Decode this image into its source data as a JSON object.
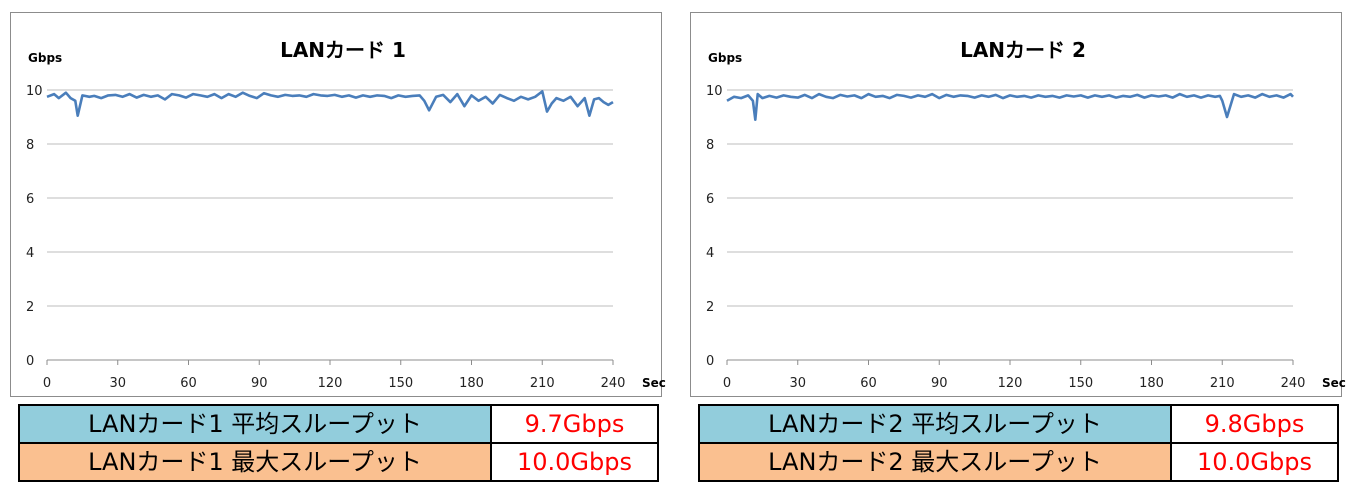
{
  "colors": {
    "series": "#4a7ebb",
    "avg_fill": "#92cddc",
    "max_fill": "#fac090",
    "value_text": "#ff0000"
  },
  "chart_data": [
    {
      "type": "line",
      "title": "LANカード 1",
      "ylabel": "Gbps",
      "xlabel": "Sec",
      "xlim": [
        0,
        240
      ],
      "ylim": [
        0,
        10
      ],
      "xticks": [
        "0",
        "30",
        "60",
        "90",
        "120",
        "150",
        "180",
        "210",
        "240"
      ],
      "yticks": [
        "0",
        "2",
        "4",
        "6",
        "8",
        "10"
      ],
      "grid": true,
      "series": [
        {
          "x": [
            0,
            3,
            5,
            8,
            10,
            12,
            13,
            15,
            18,
            20,
            23,
            26,
            29,
            32,
            35,
            38,
            41,
            44,
            47,
            50,
            53,
            56,
            59,
            62,
            65,
            68,
            71,
            74,
            77,
            80,
            83,
            86,
            89,
            92,
            95,
            98,
            101,
            104,
            107,
            110,
            113,
            116,
            119,
            122,
            125,
            128,
            131,
            134,
            137,
            140,
            143,
            146,
            149,
            152,
            155,
            158,
            160,
            162,
            165,
            168,
            171,
            174,
            177,
            180,
            183,
            186,
            189,
            192,
            195,
            198,
            201,
            204,
            207,
            210,
            212,
            214,
            216,
            219,
            222,
            225,
            228,
            230,
            232,
            234,
            236,
            238,
            240
          ],
          "y": [
            9.75,
            9.85,
            9.7,
            9.9,
            9.7,
            9.6,
            9.05,
            9.8,
            9.75,
            9.78,
            9.7,
            9.8,
            9.82,
            9.75,
            9.85,
            9.72,
            9.82,
            9.75,
            9.8,
            9.65,
            9.85,
            9.8,
            9.72,
            9.85,
            9.8,
            9.75,
            9.85,
            9.7,
            9.85,
            9.75,
            9.9,
            9.78,
            9.7,
            9.88,
            9.8,
            9.75,
            9.82,
            9.78,
            9.8,
            9.75,
            9.85,
            9.8,
            9.78,
            9.82,
            9.75,
            9.8,
            9.72,
            9.8,
            9.75,
            9.8,
            9.78,
            9.7,
            9.8,
            9.75,
            9.78,
            9.8,
            9.6,
            9.25,
            9.75,
            9.82,
            9.55,
            9.85,
            9.4,
            9.8,
            9.6,
            9.75,
            9.5,
            9.82,
            9.7,
            9.6,
            9.75,
            9.65,
            9.75,
            9.95,
            9.2,
            9.5,
            9.7,
            9.6,
            9.75,
            9.4,
            9.7,
            9.05,
            9.65,
            9.7,
            9.55,
            9.45,
            9.55
          ]
        }
      ]
    },
    {
      "type": "line",
      "title": "LANカード 2",
      "ylabel": "Gbps",
      "xlabel": "Sec",
      "xlim": [
        0,
        240
      ],
      "ylim": [
        0,
        10
      ],
      "xticks": [
        "0",
        "30",
        "60",
        "90",
        "120",
        "150",
        "180",
        "210",
        "240"
      ],
      "yticks": [
        "0",
        "2",
        "4",
        "6",
        "8",
        "10"
      ],
      "grid": true,
      "series": [
        {
          "x": [
            0,
            3,
            6,
            9,
            11,
            12,
            13,
            15,
            18,
            21,
            24,
            27,
            30,
            33,
            36,
            39,
            42,
            45,
            48,
            51,
            54,
            57,
            60,
            63,
            66,
            69,
            72,
            75,
            78,
            81,
            84,
            87,
            90,
            93,
            96,
            99,
            102,
            105,
            108,
            111,
            114,
            117,
            120,
            123,
            126,
            129,
            132,
            135,
            138,
            141,
            144,
            147,
            150,
            153,
            156,
            159,
            162,
            165,
            168,
            171,
            174,
            177,
            180,
            183,
            186,
            189,
            192,
            195,
            198,
            201,
            204,
            207,
            209,
            210,
            212,
            215,
            218,
            221,
            224,
            227,
            230,
            233,
            236,
            239,
            240
          ],
          "y": [
            9.6,
            9.75,
            9.7,
            9.8,
            9.6,
            8.9,
            9.85,
            9.7,
            9.78,
            9.72,
            9.8,
            9.75,
            9.72,
            9.82,
            9.7,
            9.85,
            9.75,
            9.7,
            9.82,
            9.76,
            9.8,
            9.7,
            9.85,
            9.75,
            9.78,
            9.7,
            9.82,
            9.78,
            9.72,
            9.8,
            9.75,
            9.85,
            9.7,
            9.82,
            9.75,
            9.8,
            9.78,
            9.72,
            9.8,
            9.75,
            9.82,
            9.7,
            9.8,
            9.75,
            9.78,
            9.72,
            9.8,
            9.75,
            9.78,
            9.72,
            9.8,
            9.76,
            9.8,
            9.72,
            9.8,
            9.75,
            9.8,
            9.72,
            9.78,
            9.75,
            9.82,
            9.72,
            9.8,
            9.76,
            9.8,
            9.72,
            9.85,
            9.75,
            9.8,
            9.72,
            9.8,
            9.75,
            9.78,
            9.6,
            9.0,
            9.85,
            9.75,
            9.8,
            9.72,
            9.85,
            9.75,
            9.8,
            9.72,
            9.85,
            9.75
          ]
        }
      ]
    }
  ],
  "tables": [
    {
      "avg_label": "LANカード1 平均スループット",
      "avg_value": "9.7Gbps",
      "max_label": "LANカード1 最大スループット",
      "max_value": "10.0Gbps"
    },
    {
      "avg_label": "LANカード2 平均スループット",
      "avg_value": "9.8Gbps",
      "max_label": "LANカード2 最大スループット",
      "max_value": "10.0Gbps"
    }
  ]
}
